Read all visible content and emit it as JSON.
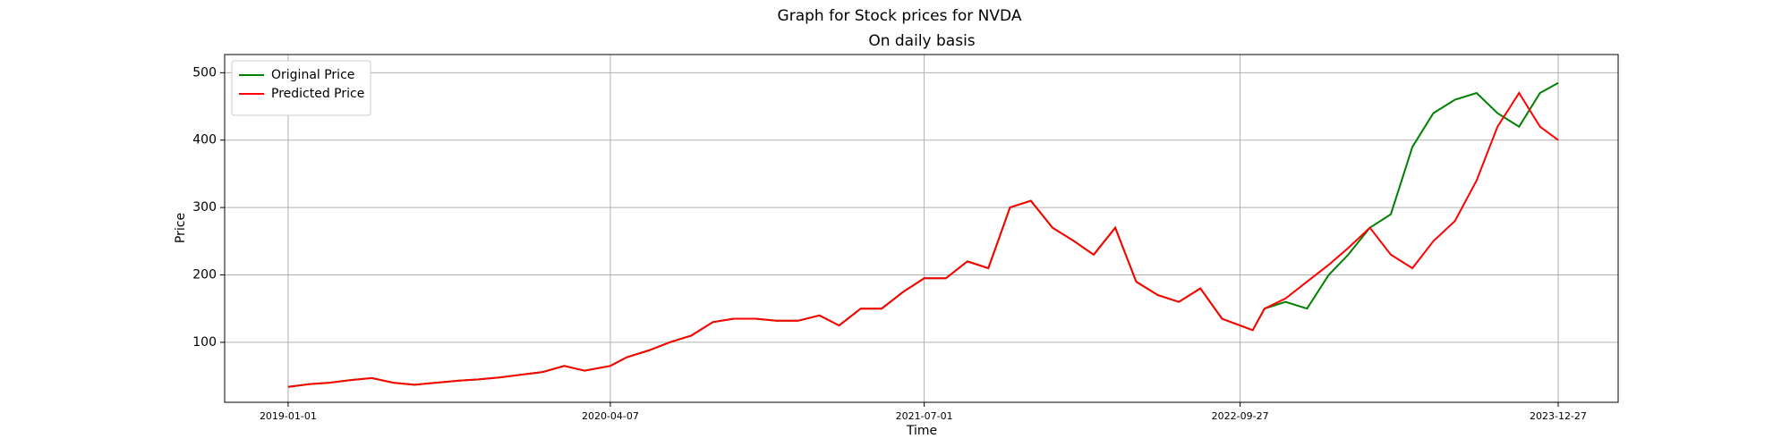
{
  "chart_data": {
    "type": "line",
    "title": "Graph for Stock prices for NVDA",
    "subtitle": "On daily basis",
    "x_label": "Time",
    "y_label": "Price",
    "x": [
      "2019-01-01",
      "2019-02-01",
      "2019-03-01",
      "2019-04-01",
      "2019-05-01",
      "2019-06-01",
      "2019-07-01",
      "2019-08-01",
      "2019-09-01",
      "2019-10-01",
      "2019-11-01",
      "2019-12-01",
      "2020-01-01",
      "2020-02-01",
      "2020-03-01",
      "2020-04-07",
      "2020-05-01",
      "2020-06-01",
      "2020-07-01",
      "2020-08-01",
      "2020-09-01",
      "2020-10-01",
      "2020-11-01",
      "2020-12-01",
      "2021-01-01",
      "2021-02-01",
      "2021-03-01",
      "2021-04-01",
      "2021-05-01",
      "2021-06-01",
      "2021-07-01",
      "2021-08-01",
      "2021-09-01",
      "2021-10-01",
      "2021-11-01",
      "2021-12-01",
      "2022-01-01",
      "2022-02-01",
      "2022-03-01",
      "2022-04-01",
      "2022-05-01",
      "2022-06-01",
      "2022-07-01",
      "2022-08-01",
      "2022-09-01",
      "2022-09-27",
      "2022-10-15",
      "2022-11-01",
      "2022-12-01",
      "2023-01-01",
      "2023-02-01",
      "2023-03-01",
      "2023-04-01",
      "2023-05-01",
      "2023-06-01",
      "2023-07-01",
      "2023-08-01",
      "2023-09-01",
      "2023-10-01",
      "2023-11-01",
      "2023-12-01",
      "2023-12-27"
    ],
    "series": [
      {
        "name": "Original Price",
        "color": "#008000",
        "values": [
          34,
          38,
          40,
          44,
          47,
          40,
          37,
          40,
          43,
          45,
          48,
          52,
          56,
          65,
          58,
          65,
          78,
          88,
          100,
          110,
          130,
          135,
          135,
          132,
          132,
          140,
          125,
          150,
          150,
          175,
          195,
          195,
          220,
          210,
          300,
          310,
          270,
          250,
          230,
          270,
          190,
          170,
          160,
          180,
          135,
          125,
          118,
          150,
          160,
          150,
          200,
          230,
          270,
          290,
          390,
          440,
          460,
          470,
          440,
          420,
          470,
          485
        ]
      },
      {
        "name": "Predicted Price",
        "color": "#ff0000",
        "values": [
          34,
          38,
          40,
          44,
          47,
          40,
          37,
          40,
          43,
          45,
          48,
          52,
          56,
          65,
          58,
          65,
          78,
          88,
          100,
          110,
          130,
          135,
          135,
          132,
          132,
          140,
          125,
          150,
          150,
          175,
          195,
          195,
          220,
          210,
          300,
          310,
          270,
          250,
          230,
          270,
          190,
          170,
          160,
          180,
          135,
          125,
          118,
          150,
          165,
          190,
          215,
          240,
          270,
          230,
          210,
          250,
          280,
          340,
          420,
          470,
          420,
          400
        ]
      }
    ],
    "xlim": [
      "2018-10-02",
      "2024-03-22"
    ],
    "xticks": [
      "2019-01-01",
      "2020-04-07",
      "2021-07-01",
      "2022-09-27",
      "2023-12-27"
    ],
    "ylim": [
      11,
      527
    ],
    "yticks": [
      100,
      200,
      300,
      400,
      500
    ],
    "grid": true,
    "legend": "upper-left"
  }
}
